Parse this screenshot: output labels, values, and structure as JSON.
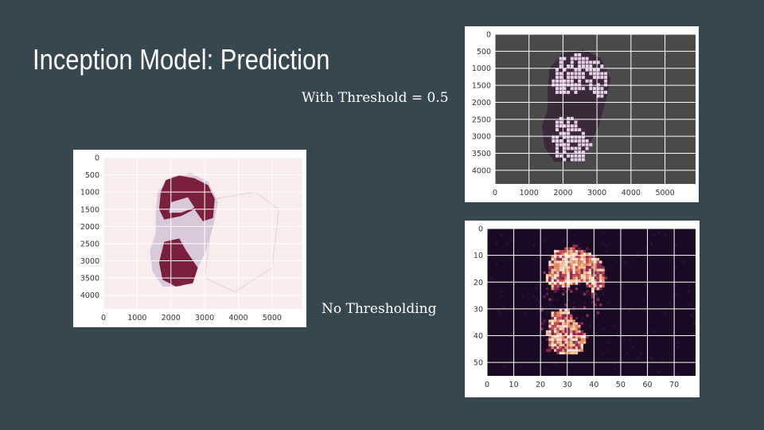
{
  "slide": {
    "title": "Inception Model: Prediction",
    "caption_threshold": "With Threshold = 0.5",
    "caption_no_threshold": "No Thresholding"
  },
  "colors": {
    "background": "#37474f",
    "tissue_pink": "#f8ecec",
    "tissue_lavender": "#d9c8da",
    "mask_maroon": "#7a1f3d",
    "grid_dark_bg": "#4a4a4a",
    "heat_dark": "#1a0a24",
    "heat_hot": "#f6c79a"
  },
  "chart_data": [
    {
      "type": "heatmap",
      "id": "left-overlay",
      "xticks": [
        "0",
        "1000",
        "2000",
        "3000",
        "4000",
        "5000"
      ],
      "yticks": [
        "0",
        "500",
        "1000",
        "1500",
        "2000",
        "2500",
        "3000",
        "3500",
        "4000"
      ],
      "xlim": [
        0,
        5900
      ],
      "ylim": [
        4400,
        0
      ],
      "grid": true
    },
    {
      "type": "heatmap",
      "id": "top-right-threshold",
      "xticks": [
        "0",
        "1000",
        "2000",
        "3000",
        "4000",
        "5000"
      ],
      "yticks": [
        "0",
        "500",
        "1000",
        "1500",
        "2000",
        "2500",
        "3000",
        "3500",
        "4000"
      ],
      "xlim": [
        0,
        5900
      ],
      "ylim": [
        4400,
        0
      ],
      "grid": true
    },
    {
      "type": "heatmap",
      "id": "bottom-right-probabilities",
      "xticks": [
        "0",
        "10",
        "20",
        "30",
        "40",
        "50",
        "60",
        "70"
      ],
      "yticks": [
        "0",
        "10",
        "20",
        "30",
        "40",
        "50"
      ],
      "xlim": [
        0,
        78
      ],
      "ylim": [
        55,
        0
      ],
      "grid": true
    }
  ]
}
